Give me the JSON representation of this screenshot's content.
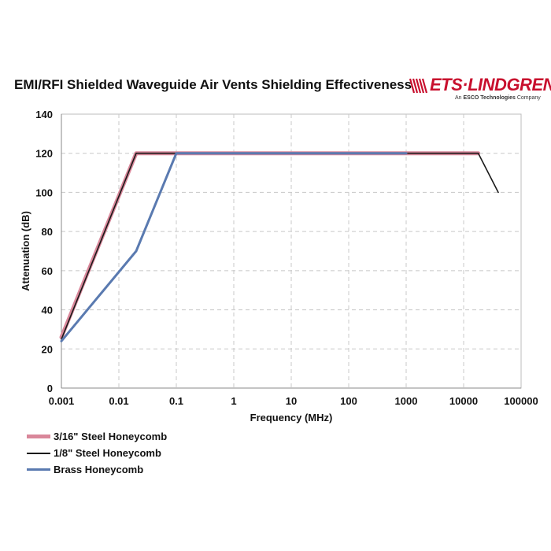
{
  "page": {
    "title": "EMI/RFI Shielded Waveguide Air Vents Shielding Effectiveness",
    "logo": {
      "brand": "ETS·LINDGREN",
      "tagline_prefix": "An ",
      "tagline_bold": "ESCO Technologies",
      "tagline_suffix": " Company",
      "color": "#c8102e"
    }
  },
  "chart_data": {
    "type": "line",
    "title": "EMI/RFI Shielded Waveguide Air Vents Shielding Effectiveness",
    "xlabel": "Frequency (MHz)",
    "ylabel": "Attenuation (dB)",
    "xscale": "log",
    "xlim": [
      0.001,
      100000
    ],
    "ylim": [
      0,
      140
    ],
    "x_ticks": [
      0.001,
      0.01,
      0.1,
      1,
      10,
      100,
      1000,
      10000,
      100000
    ],
    "x_tick_labels": [
      "0.001",
      "0.01",
      "0.1",
      "1",
      "10",
      "100",
      "1000",
      "10000",
      "100000"
    ],
    "y_ticks": [
      0,
      20,
      40,
      60,
      80,
      100,
      120,
      140
    ],
    "y_tick_labels": [
      "0",
      "20",
      "40",
      "60",
      "80",
      "100",
      "120",
      "140"
    ],
    "grid": "dashed",
    "legend_position": "bottom-left",
    "series": [
      {
        "name": "3/16\" Steel Honeycomb",
        "color": "#d9879a",
        "width": 5,
        "points": [
          [
            0.001,
            26
          ],
          [
            0.02,
            120
          ],
          [
            18000,
            120
          ]
        ]
      },
      {
        "name": "1/8\" Steel Honeycomb",
        "color": "#1a1a1a",
        "width": 1.6,
        "points": [
          [
            0.001,
            25
          ],
          [
            0.02,
            120
          ],
          [
            18000,
            120
          ],
          [
            40000,
            100
          ]
        ]
      },
      {
        "name": "Brass Honeycomb",
        "color": "#5a7ab0",
        "width": 3,
        "points": [
          [
            0.001,
            24
          ],
          [
            0.02,
            70
          ],
          [
            0.1,
            120
          ],
          [
            1000,
            120
          ]
        ]
      }
    ]
  }
}
